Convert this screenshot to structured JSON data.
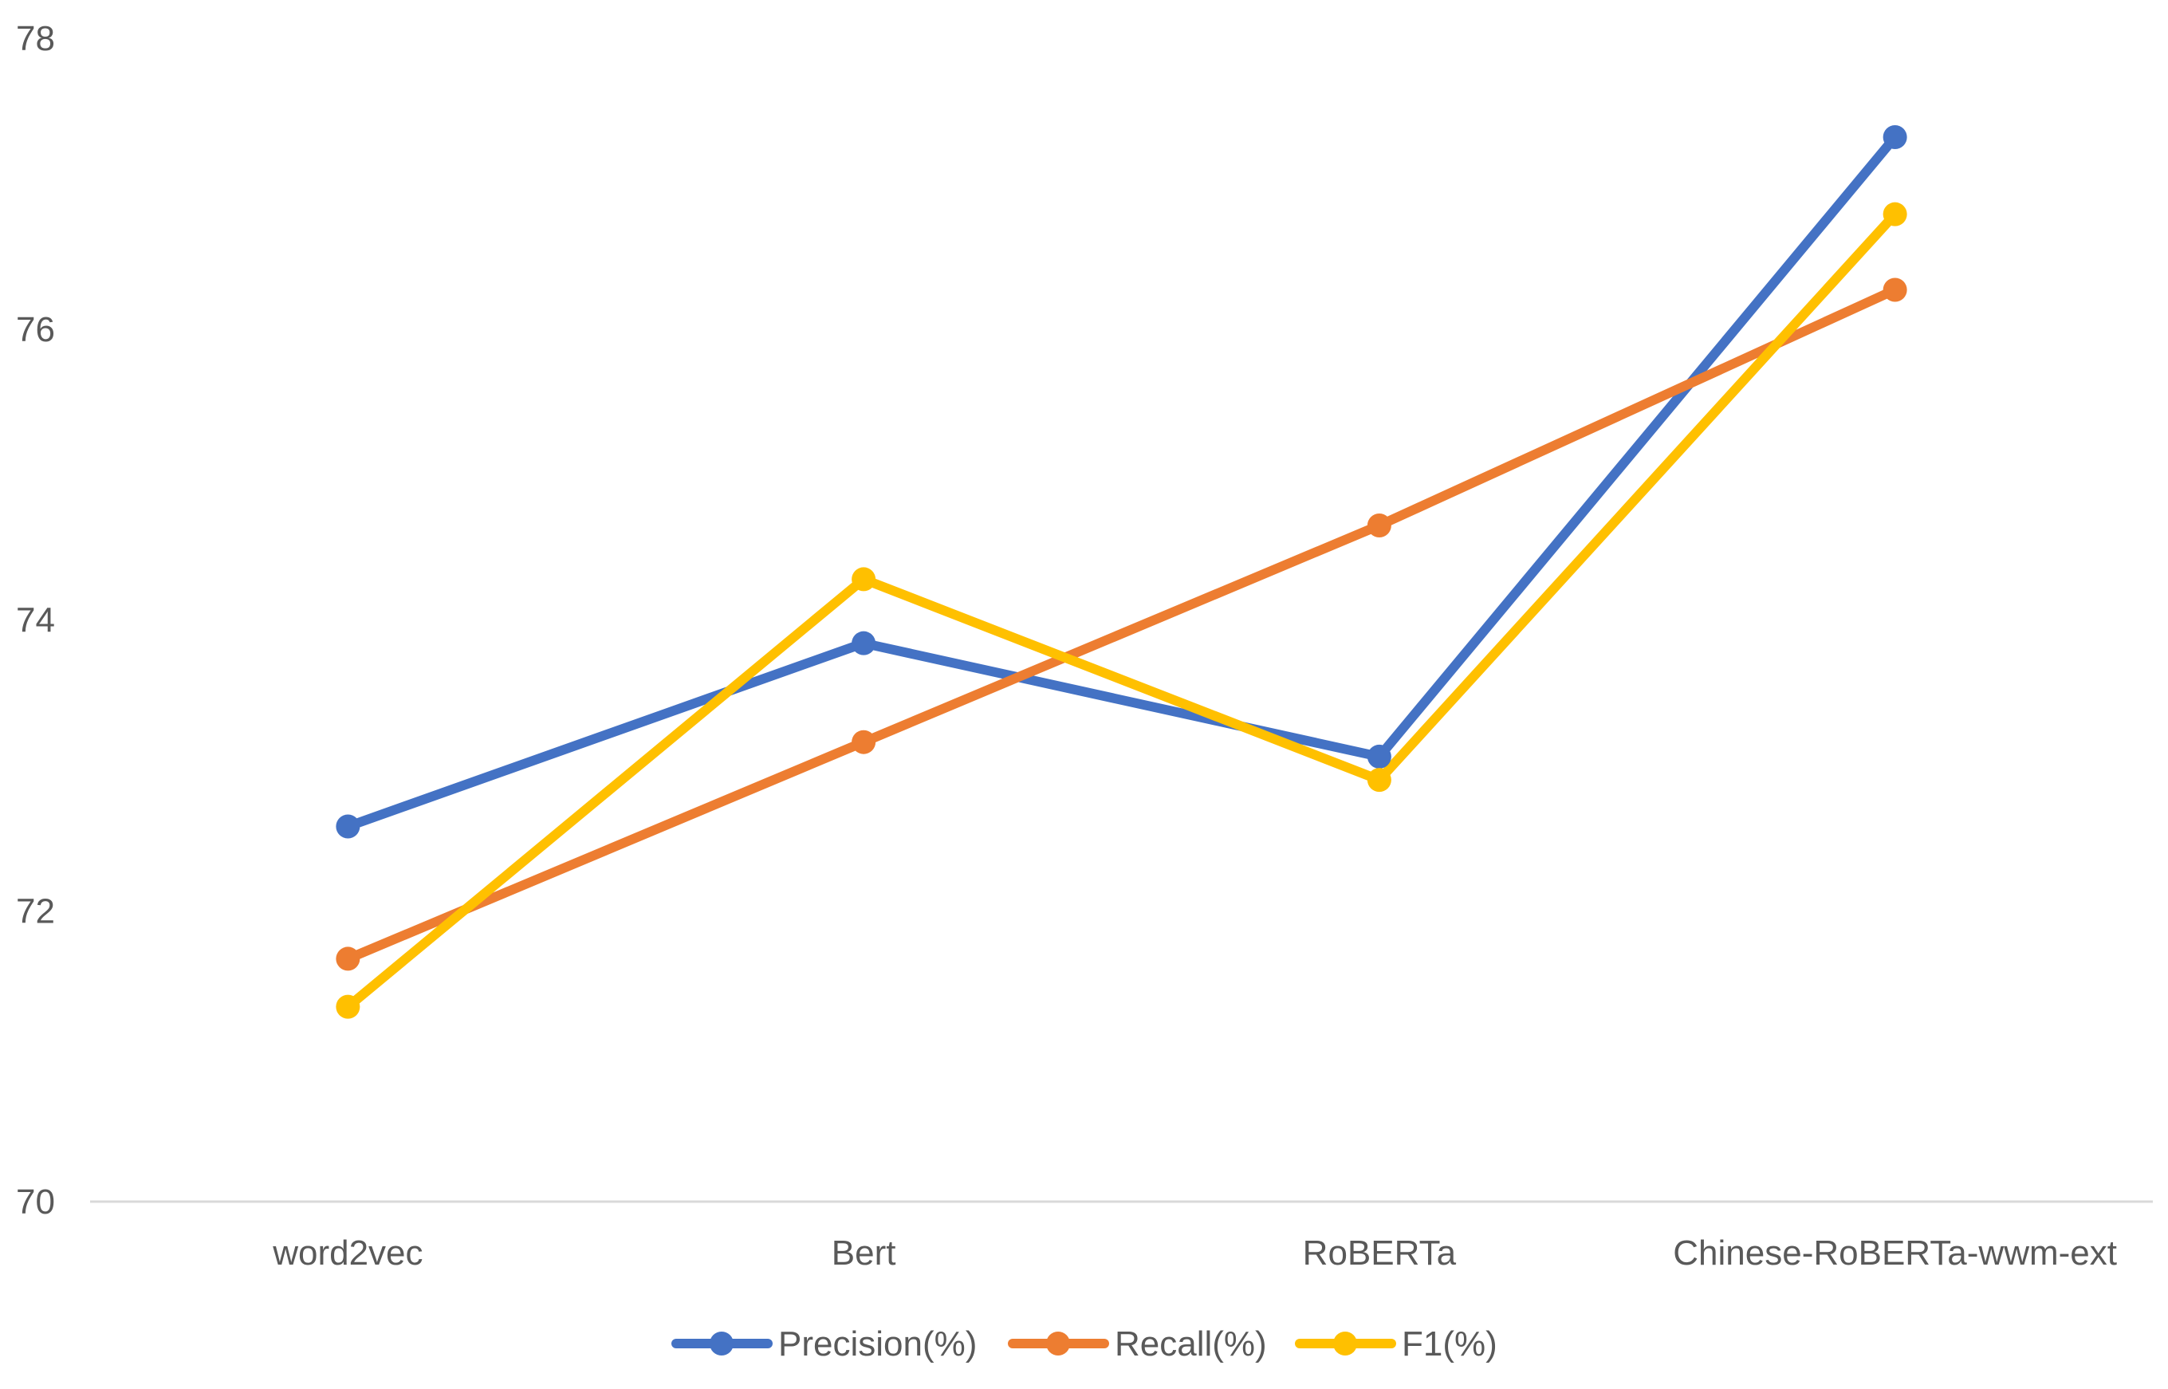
{
  "chart_data": {
    "type": "line",
    "title": "",
    "xlabel": "",
    "ylabel": "",
    "categories": [
      "word2vec",
      "Bert",
      "RoBERTa",
      "Chinese-RoBERTa-wwm-ext"
    ],
    "ylim": [
      70,
      78
    ],
    "yticks": [
      70,
      72,
      74,
      76,
      78
    ],
    "grid": false,
    "legend_position": "bottom",
    "series": [
      {
        "name": "Precision(%)",
        "color": "#4472C4",
        "values": [
          72.58,
          73.84,
          73.06,
          77.32
        ]
      },
      {
        "name": "Recall(%)",
        "color": "#ED7D31",
        "values": [
          71.67,
          73.16,
          74.65,
          76.27
        ]
      },
      {
        "name": "F1(%)",
        "color": "#FFC000",
        "values": [
          71.34,
          74.28,
          72.9,
          76.79
        ]
      }
    ]
  }
}
